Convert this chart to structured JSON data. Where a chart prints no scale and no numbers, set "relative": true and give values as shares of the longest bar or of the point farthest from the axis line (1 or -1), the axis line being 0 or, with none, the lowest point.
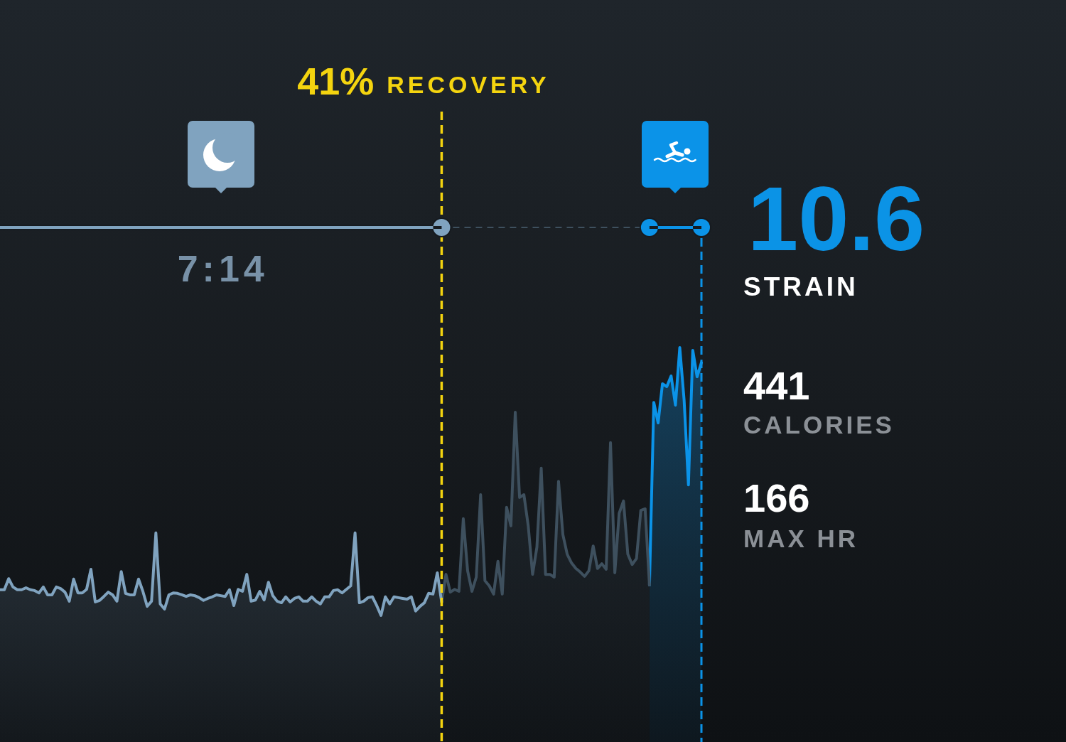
{
  "chart_data": {
    "type": "area",
    "relative": true,
    "categories": [
      null,
      null,
      null,
      null,
      null,
      null,
      null,
      null,
      null,
      null,
      null,
      null,
      null,
      null,
      null,
      null,
      null,
      null,
      null,
      null,
      null,
      null,
      null,
      null,
      null,
      null,
      null,
      null,
      null,
      null,
      null,
      null,
      null,
      null,
      null,
      null,
      null,
      null,
      null,
      null,
      null,
      null,
      null,
      null,
      null,
      null,
      null,
      null,
      null,
      null,
      null,
      null,
      null,
      null,
      null,
      null,
      null,
      null,
      null,
      null,
      null,
      null,
      null,
      null,
      null,
      null,
      null,
      null,
      null,
      null,
      null,
      null,
      null,
      null,
      null,
      null,
      null,
      null,
      null,
      null,
      null,
      null,
      null,
      null,
      null,
      null,
      null,
      null,
      null,
      null,
      null,
      null,
      null,
      null,
      null,
      null,
      null,
      null,
      null,
      null,
      null,
      null,
      null,
      null,
      null,
      null,
      null,
      null,
      null,
      null,
      null,
      null,
      null,
      null,
      null,
      null,
      null,
      null,
      null,
      null,
      null,
      null,
      null,
      null,
      null,
      null,
      null,
      null,
      null,
      null,
      null,
      null,
      null,
      null,
      null,
      null,
      null,
      null,
      null,
      null,
      null,
      null,
      null,
      null,
      null,
      null,
      null,
      null,
      null,
      null,
      null,
      null,
      null,
      null,
      null,
      null,
      null,
      null,
      null,
      null,
      null,
      null,
      null
    ],
    "series": [
      {
        "color": "#80a3bf",
        "values": [
          0.386,
          0.386,
          0.414,
          0.393,
          0.386,
          0.386,
          0.391,
          0.386,
          0.384,
          0.378,
          0.393,
          0.373,
          0.373,
          0.393,
          0.389,
          0.38,
          0.357,
          0.413,
          0.378,
          0.378,
          0.387,
          0.438,
          0.355,
          0.359,
          0.369,
          0.38,
          0.373,
          0.357,
          0.432,
          0.377,
          0.373,
          0.373,
          0.413,
          0.382,
          0.344,
          0.357,
          0.53,
          0.35,
          0.337,
          0.373,
          0.378,
          0.377,
          0.373,
          0.369,
          0.373,
          0.371,
          0.366,
          0.359,
          0.364,
          0.368,
          0.373,
          0.371,
          0.369,
          0.386,
          0.346,
          0.387,
          0.382,
          0.425,
          0.357,
          0.36,
          0.382,
          0.36,
          0.405,
          0.371,
          0.357,
          0.353,
          0.368,
          0.355,
          0.364,
          0.368,
          0.357,
          0.357,
          0.368,
          0.357,
          0.35,
          0.368,
          0.368,
          0.384,
          0.386,
          0.378,
          0.387,
          0.396,
          0.53,
          0.353,
          0.357,
          0.366,
          0.368,
          0.346,
          0.321,
          0.368,
          0.35,
          0.368,
          0.366,
          0.364,
          0.362,
          0.368,
          0.332,
          0.344,
          0.353,
          0.377,
          0.375,
          0.429,
          0.355,
          null,
          null,
          null,
          null,
          null,
          null,
          null,
          null,
          null,
          null,
          null,
          null,
          null,
          null,
          null,
          null,
          null,
          null,
          null,
          null,
          null,
          null,
          null,
          null,
          null,
          null,
          null,
          null,
          null,
          null,
          null,
          null,
          null,
          null,
          null,
          null,
          null,
          null,
          null,
          null,
          null,
          null,
          null,
          null,
          null,
          null,
          null,
          null,
          null,
          null,
          null,
          null,
          null,
          null,
          null,
          null,
          null,
          null,
          null,
          null
        ]
      },
      {
        "color": "#3e505e",
        "values": [
          null,
          null,
          null,
          null,
          null,
          null,
          null,
          null,
          null,
          null,
          null,
          null,
          null,
          null,
          null,
          null,
          null,
          null,
          null,
          null,
          null,
          null,
          null,
          null,
          null,
          null,
          null,
          null,
          null,
          null,
          null,
          null,
          null,
          null,
          null,
          null,
          null,
          null,
          null,
          null,
          null,
          null,
          null,
          null,
          null,
          null,
          null,
          null,
          null,
          null,
          null,
          null,
          null,
          null,
          null,
          null,
          null,
          null,
          null,
          null,
          null,
          null,
          null,
          null,
          null,
          null,
          null,
          null,
          null,
          null,
          null,
          null,
          null,
          null,
          null,
          null,
          null,
          null,
          null,
          null,
          null,
          null,
          null,
          null,
          null,
          null,
          null,
          null,
          null,
          null,
          null,
          null,
          null,
          null,
          null,
          null,
          null,
          null,
          null,
          null,
          null,
          null,
          0.355,
          0.425,
          0.38,
          0.387,
          0.382,
          0.566,
          0.434,
          0.382,
          0.418,
          0.627,
          0.409,
          0.396,
          0.375,
          0.458,
          0.375,
          0.595,
          0.548,
          0.836,
          0.62,
          0.627,
          0.548,
          0.425,
          0.494,
          0.694,
          0.425,
          0.425,
          0.418,
          0.661,
          0.526,
          0.476,
          0.454,
          0.44,
          0.431,
          0.42,
          0.434,
          0.497,
          0.44,
          0.452,
          0.438,
          0.759,
          0.429,
          0.58,
          0.611,
          0.476,
          0.45,
          0.465,
          0.587,
          0.591,
          0.398,
          null,
          null,
          null,
          null,
          null,
          null,
          null,
          null,
          null,
          null,
          null,
          null
        ]
      },
      {
        "color": "#0b93e8",
        "values": [
          null,
          null,
          null,
          null,
          null,
          null,
          null,
          null,
          null,
          null,
          null,
          null,
          null,
          null,
          null,
          null,
          null,
          null,
          null,
          null,
          null,
          null,
          null,
          null,
          null,
          null,
          null,
          null,
          null,
          null,
          null,
          null,
          null,
          null,
          null,
          null,
          null,
          null,
          null,
          null,
          null,
          null,
          null,
          null,
          null,
          null,
          null,
          null,
          null,
          null,
          null,
          null,
          null,
          null,
          null,
          null,
          null,
          null,
          null,
          null,
          null,
          null,
          null,
          null,
          null,
          null,
          null,
          null,
          null,
          null,
          null,
          null,
          null,
          null,
          null,
          null,
          null,
          null,
          null,
          null,
          null,
          null,
          null,
          null,
          null,
          null,
          null,
          null,
          null,
          null,
          null,
          null,
          null,
          null,
          null,
          null,
          null,
          null,
          null,
          null,
          null,
          null,
          null,
          null,
          null,
          null,
          null,
          null,
          null,
          null,
          null,
          null,
          null,
          null,
          null,
          null,
          null,
          null,
          null,
          null,
          null,
          null,
          null,
          null,
          null,
          null,
          null,
          null,
          null,
          null,
          null,
          null,
          null,
          null,
          null,
          null,
          null,
          null,
          null,
          null,
          null,
          null,
          null,
          null,
          null,
          null,
          null,
          null,
          null,
          null,
          0.398,
          0.861,
          0.809,
          0.908,
          0.901,
          0.928,
          0.854,
          1,
          0.867,
          0.652,
          0.993,
          0.926,
          0.962
        ]
      }
    ],
    "annotations": [
      "41% RECOVERY",
      "7:14",
      "10.6",
      "STRAIN",
      "441",
      "CALORIES",
      "166",
      "MAX HR"
    ],
    "grid": false,
    "legend": false,
    "marker": "none",
    "line_style": "solid",
    "tick_labels": false
  }
}
